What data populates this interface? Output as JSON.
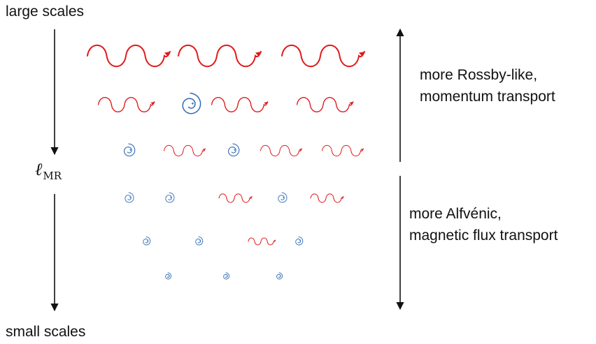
{
  "labels": {
    "top_left": "large scales",
    "bottom_left": "small scales",
    "scale_symbol": "ℓ",
    "scale_subscript": "MR",
    "right_upper_line1": "more Rossby-like,",
    "right_upper_line2": "momentum transport",
    "right_lower_line1": "more Alfvénic,",
    "right_lower_line2": "magnetic flux transport"
  },
  "colors": {
    "wave": "#e01b1b",
    "eddy": "#2f6bb5",
    "arrow": "#111111",
    "text": "#111111"
  },
  "glyphs": {
    "wave": "red wavy arrow",
    "eddy": "blue spiral eddy"
  },
  "rows": [
    {
      "items": [
        "wave",
        "wave",
        "wave"
      ]
    },
    {
      "items": [
        "wave",
        "eddy",
        "wave",
        "wave"
      ]
    },
    {
      "items": [
        "eddy",
        "wave",
        "eddy",
        "wave",
        "wave"
      ]
    },
    {
      "items": [
        "eddy",
        "eddy",
        "wave",
        "eddy",
        "wave"
      ]
    },
    {
      "items": [
        "eddy",
        "eddy",
        "wave",
        "eddy"
      ]
    },
    {
      "items": [
        "eddy",
        "eddy",
        "eddy"
      ]
    }
  ]
}
